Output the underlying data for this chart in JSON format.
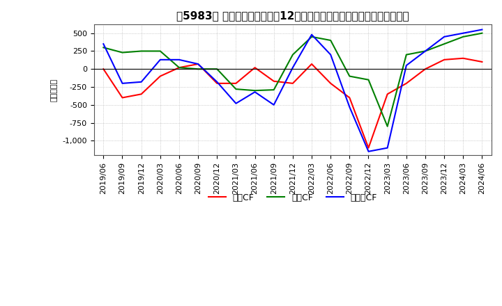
{
  "title": "【5983】 キャッシュフローの12か月移動合計の対前年同期増減額の推移",
  "ylabel": "（百万円）",
  "x_labels": [
    "2019/06",
    "2019/09",
    "2019/12",
    "2020/03",
    "2020/06",
    "2020/09",
    "2020/12",
    "2021/03",
    "2021/06",
    "2021/09",
    "2021/12",
    "2022/03",
    "2022/06",
    "2022/09",
    "2022/12",
    "2023/03",
    "2023/06",
    "2023/09",
    "2023/12",
    "2024/03",
    "2024/06"
  ],
  "operating_cf": [
    0,
    -400,
    -350,
    -100,
    20,
    70,
    -200,
    -200,
    20,
    -170,
    -200,
    70,
    -200,
    -400,
    -1100,
    -350,
    -200,
    0,
    130,
    150,
    100
  ],
  "investing_cf": [
    300,
    230,
    250,
    250,
    20,
    0,
    0,
    -280,
    -300,
    -290,
    200,
    450,
    400,
    -100,
    -150,
    -800,
    200,
    250,
    350,
    450,
    500
  ],
  "free_cf": [
    350,
    -200,
    -180,
    130,
    130,
    70,
    -180,
    -480,
    -320,
    -500,
    20,
    480,
    200,
    -530,
    -1150,
    -1100,
    50,
    250,
    450,
    500,
    550
  ],
  "ylim": [
    -1200,
    620
  ],
  "yticks": [
    500,
    250,
    0,
    -250,
    -500,
    -750,
    -1000
  ],
  "operating_color": "#ff0000",
  "investing_color": "#008000",
  "free_color": "#0000ff",
  "background_color": "#ffffff",
  "title_fontsize": 11,
  "tick_fontsize": 8,
  "legend_fontsize": 9
}
